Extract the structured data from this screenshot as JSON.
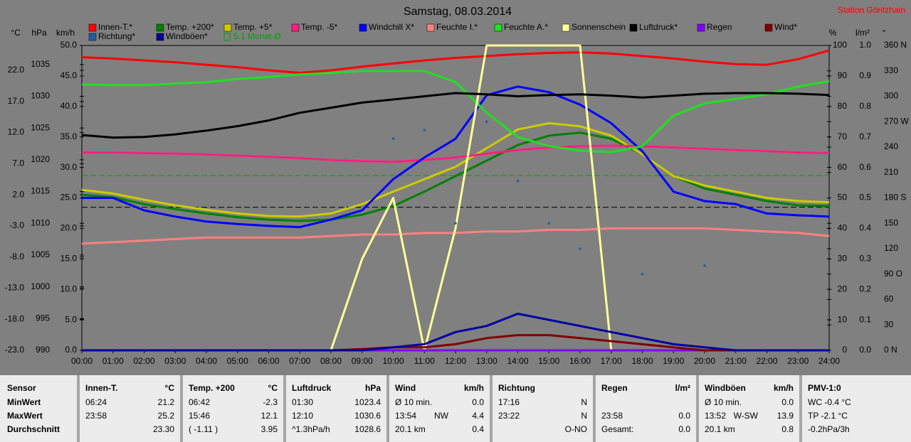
{
  "chart_data": {
    "type": "line",
    "title": "Samstag, 08.03.2014",
    "station": "Station Göritzhain",
    "x": [
      "00:00",
      "01:00",
      "02:00",
      "03:00",
      "04:00",
      "05:00",
      "06:00",
      "07:00",
      "08:00",
      "09:00",
      "10:00",
      "11:00",
      "12:00",
      "13:00",
      "14:00",
      "15:00",
      "16:00",
      "17:00",
      "18:00",
      "19:00",
      "20:00",
      "21:00",
      "22:00",
      "23:00",
      "24:00"
    ],
    "axes": {
      "temp": {
        "label": "°C",
        "lim": [
          -23,
          26
        ],
        "ticks": [
          {
            "value": -23,
            "label": "-23.0"
          },
          {
            "value": -18,
            "label": "-18.0"
          },
          {
            "value": -13,
            "label": "-13.0"
          },
          {
            "value": -8,
            "label": "-8.0"
          },
          {
            "value": -3,
            "label": "-3.0"
          },
          {
            "value": 2,
            "label": "2.0"
          },
          {
            "value": 7,
            "label": "7.0"
          },
          {
            "value": 12,
            "label": "12.0"
          },
          {
            "value": 17,
            "label": "17.0"
          },
          {
            "value": 22,
            "label": "22.0"
          }
        ]
      },
      "hpa": {
        "label": "hPa",
        "lim": [
          990,
          1038
        ],
        "ticks": [
          990,
          995,
          1000,
          1005,
          1010,
          1015,
          1020,
          1025,
          1030,
          1035
        ]
      },
      "kmh": {
        "label": "km/h",
        "lim": [
          0,
          50
        ],
        "ticks": [
          {
            "value": 0,
            "label": "0.0"
          },
          {
            "value": 5,
            "label": "5.0"
          },
          {
            "value": 10,
            "label": "10.0"
          },
          {
            "value": 15,
            "label": "15.0"
          },
          {
            "value": 20,
            "label": "20.0"
          },
          {
            "value": 25,
            "label": "25.0"
          },
          {
            "value": 30,
            "label": "30.0"
          },
          {
            "value": 35,
            "label": "35.0"
          },
          {
            "value": 40,
            "label": "40.0"
          },
          {
            "value": 45,
            "label": "45.0"
          },
          {
            "value": 50,
            "label": "50.0"
          }
        ]
      },
      "pct": {
        "label": "%",
        "lim": [
          0,
          100
        ],
        "ticks": [
          0,
          10,
          20,
          30,
          40,
          50,
          60,
          70,
          80,
          90,
          100
        ]
      },
      "lm2": {
        "label": "l/m²",
        "lim": [
          0,
          1
        ],
        "ticks": [
          {
            "value": 0,
            "label": "0.0"
          },
          {
            "value": 0.1,
            "label": "0.1"
          },
          {
            "value": 0.2,
            "label": "0.2"
          },
          {
            "value": 0.3,
            "label": "0.3"
          },
          {
            "value": 0.4,
            "label": "0.4"
          },
          {
            "value": 0.5,
            "label": "0.5"
          },
          {
            "value": 0.6,
            "label": "0.6"
          },
          {
            "value": 0.7,
            "label": "0.7"
          },
          {
            "value": 0.8,
            "label": "0.8"
          },
          {
            "value": 0.9,
            "label": "0.9"
          },
          {
            "value": 1,
            "label": "1.0"
          }
        ]
      },
      "deg": {
        "label": "°",
        "lim": [
          0,
          360
        ],
        "ticks": [
          {
            "value": 0,
            "label": "0 N"
          },
          30,
          60,
          {
            "value": 90,
            "label": "90 O"
          },
          120,
          150,
          {
            "value": 180,
            "label": "180 S"
          },
          210,
          240,
          {
            "value": 270,
            "label": "270 W"
          },
          300,
          330,
          {
            "value": 360,
            "label": "360 N"
          }
        ]
      }
    },
    "series": [
      {
        "name": "Innen-T.*",
        "color": "#ff0000",
        "axis": "temp",
        "values": [
          24.1,
          23.9,
          23.6,
          23.3,
          22.9,
          22.5,
          22.0,
          21.6,
          22.0,
          22.6,
          23.1,
          23.6,
          24.0,
          24.3,
          24.6,
          24.8,
          24.9,
          24.7,
          24.3,
          23.9,
          23.4,
          23.0,
          22.9,
          23.8,
          25.2
        ]
      },
      {
        "name": "Temp. +200*",
        "color": "#008000",
        "axis": "temp",
        "values": [
          2.0,
          1.6,
          0.5,
          -0.3,
          -1.0,
          -1.6,
          -2.0,
          -2.2,
          -2.0,
          -1.2,
          0.2,
          2.5,
          5.0,
          7.5,
          10.0,
          11.5,
          12.0,
          11.0,
          8.5,
          5.0,
          3.0,
          2.0,
          1.0,
          0.3,
          0.2
        ]
      },
      {
        "name": "Temp. +5*",
        "color": "#cccc00",
        "axis": "temp",
        "values": [
          2.8,
          2.2,
          1.2,
          0.3,
          -0.4,
          -1.0,
          -1.4,
          -1.5,
          -1.0,
          0.5,
          2.5,
          4.5,
          6.5,
          9.5,
          12.5,
          13.5,
          13.0,
          11.5,
          8.5,
          5.0,
          3.5,
          2.5,
          1.5,
          1.0,
          0.8
        ]
      },
      {
        "name": "Temp. -5*",
        "color": "#ff1f80",
        "axis": "temp",
        "values": [
          8.8,
          8.8,
          8.7,
          8.6,
          8.5,
          8.3,
          8.1,
          7.9,
          7.6,
          7.4,
          7.3,
          7.6,
          8.0,
          8.6,
          9.2,
          9.6,
          9.8,
          9.9,
          9.8,
          9.6,
          9.4,
          9.2,
          9.0,
          8.8,
          8.7
        ]
      },
      {
        "name": "Windchill X*",
        "color": "#0000ff",
        "axis": "temp",
        "values": [
          1.5,
          1.5,
          -0.5,
          -1.5,
          -2.3,
          -2.7,
          -3.0,
          -3.2,
          -2.0,
          -0.5,
          4.5,
          8.0,
          11.0,
          18.0,
          19.4,
          18.5,
          16.5,
          13.5,
          9.0,
          2.5,
          1.0,
          0.5,
          -1.0,
          -1.3,
          -1.5
        ]
      },
      {
        "name": "Feuchte I.*",
        "color": "#ff8080",
        "axis": "pct",
        "values": [
          35,
          35.5,
          36,
          36.5,
          37,
          37,
          37,
          37,
          37.5,
          38,
          38,
          38.5,
          38.5,
          39,
          39,
          39.5,
          39.5,
          40,
          40,
          40,
          40,
          39.5,
          39,
          38.5,
          37.5
        ]
      },
      {
        "name": "Feuchte A.*",
        "color": "#20e020",
        "axis": "pct",
        "values": [
          87.2,
          87,
          87,
          87.5,
          88,
          89,
          89.7,
          90.5,
          91,
          91.6,
          91.6,
          91.6,
          88,
          78,
          70,
          67,
          65.5,
          65,
          67,
          77,
          81,
          82.5,
          84,
          86.5,
          88.3
        ]
      },
      {
        "name": "Sonnenschein",
        "color": "#ffff99",
        "axis": "pct",
        "values": [
          0,
          0,
          0,
          0,
          0,
          0,
          0,
          0,
          0,
          30,
          50,
          0,
          40,
          100,
          100,
          100,
          100,
          0,
          0,
          0,
          0,
          0,
          0,
          0,
          0
        ]
      },
      {
        "name": "Luftdruck*",
        "color": "#000000",
        "axis": "hpa",
        "values": [
          1023.9,
          1023.5,
          1023.6,
          1024.0,
          1024.6,
          1025.3,
          1026.2,
          1027.4,
          1028.2,
          1029.0,
          1029.5,
          1030.0,
          1030.5,
          1030.3,
          1030.0,
          1030.2,
          1030.3,
          1030.1,
          1029.8,
          1030.1,
          1030.4,
          1030.5,
          1030.5,
          1030.4,
          1030.2
        ]
      },
      {
        "name": "Regen",
        "color": "#8000ff",
        "axis": "lm2",
        "values": [
          0,
          0,
          0,
          0,
          0,
          0,
          0,
          0,
          0,
          0,
          0,
          0,
          0,
          0,
          0,
          0,
          0,
          0,
          0,
          0,
          0,
          0,
          0,
          0,
          0
        ]
      },
      {
        "name": "Wind*",
        "color": "#800000",
        "axis": "kmh",
        "values": [
          0,
          0,
          0,
          0,
          0,
          0,
          0,
          0,
          0,
          0.2,
          0.5,
          0.5,
          1,
          2,
          2.5,
          2.5,
          2,
          1.5,
          1,
          0.5,
          0,
          0,
          0,
          0,
          0
        ]
      },
      {
        "name": "Richtung*",
        "color": "#1f5fa0",
        "axis": "deg",
        "style": "dots",
        "values": [
          null,
          null,
          null,
          null,
          null,
          null,
          null,
          null,
          null,
          null,
          250,
          260,
          150,
          270,
          200,
          150,
          120,
          null,
          90,
          null,
          100,
          null,
          null,
          null,
          null
        ]
      },
      {
        "name": "Windböen*",
        "color": "#0000a0",
        "axis": "kmh",
        "values": [
          0,
          0,
          0,
          0,
          0,
          0,
          0,
          0,
          0,
          0,
          0.5,
          1,
          3,
          4,
          6,
          5,
          4,
          3,
          2,
          1,
          0.5,
          0,
          0,
          0,
          0
        ]
      }
    ],
    "reference_lines": [
      {
        "name": "5.1 Monat-Ø",
        "value": 5.1,
        "axis": "temp",
        "color": "#00a000"
      },
      {
        "value": 0,
        "axis": "temp",
        "color": "#000000"
      }
    ]
  },
  "table": {
    "row_labels": [
      "Sensor",
      "MinWert",
      "MaxWert",
      "Durchschnitt"
    ],
    "columns": [
      {
        "name": "Innen-T.",
        "unit": "°C",
        "rows": [
          {
            "left": "06:24",
            "right": "21.2"
          },
          {
            "left": "23:58",
            "right": "25.2"
          },
          {
            "right": "23.30"
          }
        ]
      },
      {
        "name": "Temp. +200",
        "unit": "°C",
        "rows": [
          {
            "left": "06:42",
            "right": "-2.3"
          },
          {
            "left": "15:46",
            "right": "12.1"
          },
          {
            "left": "( -1.11 )",
            "right": "3.95"
          }
        ]
      },
      {
        "name": "Luftdruck",
        "unit": "hPa",
        "rows": [
          {
            "left": "01:30",
            "right": "1023.4"
          },
          {
            "left": "12:10",
            "right": "1030.6"
          },
          {
            "left": "^1.3hPa/h",
            "right": "1028.6"
          }
        ]
      },
      {
        "name": "Wind",
        "unit": "km/h",
        "rows": [
          {
            "left": "Ø 10 min.",
            "right": "0.0"
          },
          {
            "left": "13:54",
            "mid": "NW",
            "right": "4.4"
          },
          {
            "left": "20.1 km",
            "right": "0.4"
          }
        ]
      },
      {
        "name": "Richtung",
        "rows": [
          {
            "left": "17:16",
            "right": "N"
          },
          {
            "left": "23:22",
            "right": "N"
          },
          {
            "right": "O-NO"
          }
        ]
      },
      {
        "name": "Regen",
        "unit": "l/m²",
        "rows": [
          {},
          {
            "left": "23:58",
            "right": "0.0"
          },
          {
            "left": "Gesamt:",
            "right": "0.0"
          }
        ]
      },
      {
        "name": "Windböen",
        "unit": "km/h",
        "rows": [
          {
            "left": "Ø 10 min.",
            "right": "0.0"
          },
          {
            "left": "13:52",
            "mid": "W-SW",
            "right": "13.9"
          },
          {
            "left": "20.1 km",
            "right": "0.8"
          }
        ]
      },
      {
        "name": "PMV-1:0",
        "rows": [
          {
            "left": "WC -0.4 °C"
          },
          {
            "left": "TP -2.1 °C"
          },
          {
            "left": "-0.2hPa/3h"
          }
        ]
      }
    ]
  }
}
